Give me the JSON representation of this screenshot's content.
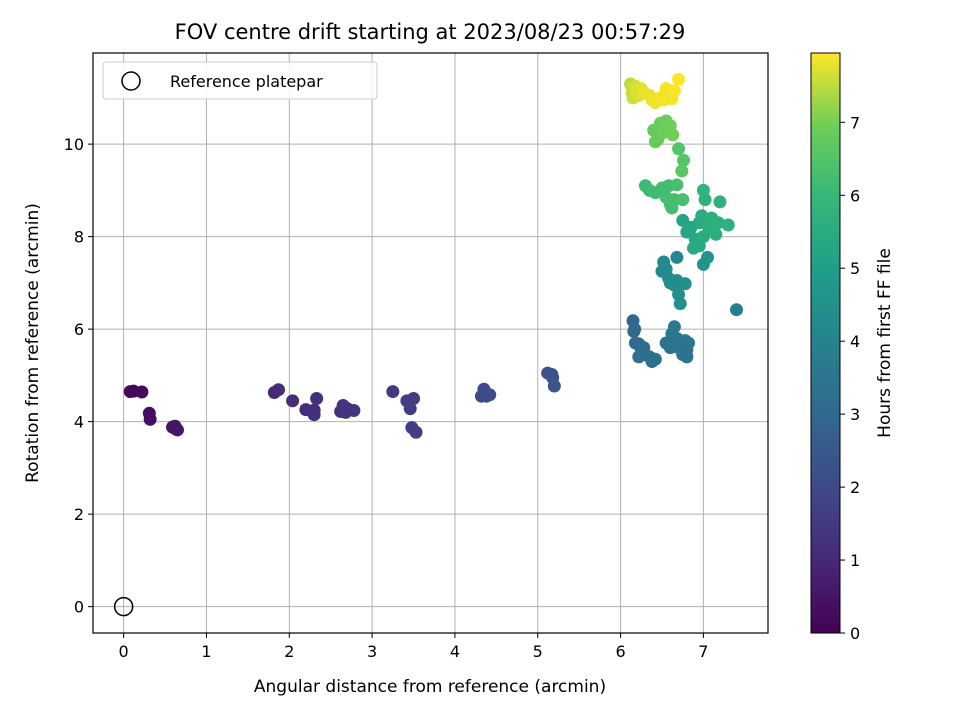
{
  "chart_data": {
    "type": "scatter",
    "title": "FOV centre drift starting at 2023/08/23 00:57:29",
    "xlabel": "Angular distance from reference (arcmin)",
    "ylabel": "Rotation from reference (arcmin)",
    "xlim": [
      -0.37,
      7.78
    ],
    "ylim": [
      -0.57,
      11.97
    ],
    "xticks": [
      0,
      1,
      2,
      3,
      4,
      5,
      6,
      7
    ],
    "yticks": [
      0,
      2,
      4,
      6,
      8,
      10
    ],
    "grid": true,
    "legend": {
      "placement": "top-left",
      "entries": [
        "Reference platepar"
      ]
    },
    "reference_point": {
      "x": 0,
      "y": 0,
      "label": "Reference platepar"
    },
    "colorbar": {
      "label": "Hours from first FF file",
      "range": [
        0,
        7.95
      ],
      "ticks": [
        0,
        1,
        2,
        3,
        4,
        5,
        6,
        7
      ],
      "colormap": "viridis"
    },
    "series": [
      {
        "points": [
          {
            "x": 0.08,
            "y": 4.65,
            "c": 0.1
          },
          {
            "x": 0.12,
            "y": 4.66,
            "c": 0.15
          },
          {
            "x": 0.22,
            "y": 4.64,
            "c": 0.2
          },
          {
            "x": 0.31,
            "y": 4.18,
            "c": 0.3
          },
          {
            "x": 0.32,
            "y": 4.05,
            "c": 0.35
          },
          {
            "x": 0.59,
            "y": 3.88,
            "c": 0.45
          },
          {
            "x": 0.63,
            "y": 3.84,
            "c": 0.5
          },
          {
            "x": 0.65,
            "y": 3.82,
            "c": 0.55
          },
          {
            "x": 0.62,
            "y": 3.9,
            "c": 0.48
          },
          {
            "x": 1.82,
            "y": 4.63,
            "c": 1.0
          },
          {
            "x": 1.87,
            "y": 4.69,
            "c": 1.05
          },
          {
            "x": 2.04,
            "y": 4.45,
            "c": 1.1
          },
          {
            "x": 2.2,
            "y": 4.26,
            "c": 1.15
          },
          {
            "x": 2.3,
            "y": 4.15,
            "c": 1.2
          },
          {
            "x": 2.33,
            "y": 4.5,
            "c": 1.2
          },
          {
            "x": 2.3,
            "y": 4.25,
            "c": 1.18
          },
          {
            "x": 2.62,
            "y": 4.22,
            "c": 1.3
          },
          {
            "x": 2.65,
            "y": 4.35,
            "c": 1.32
          },
          {
            "x": 2.7,
            "y": 4.28,
            "c": 1.35
          },
          {
            "x": 2.68,
            "y": 4.2,
            "c": 1.33
          },
          {
            "x": 2.78,
            "y": 4.24,
            "c": 1.38
          },
          {
            "x": 3.25,
            "y": 4.65,
            "c": 1.55
          },
          {
            "x": 3.42,
            "y": 4.45,
            "c": 1.6
          },
          {
            "x": 3.46,
            "y": 4.28,
            "c": 1.62
          },
          {
            "x": 3.5,
            "y": 4.5,
            "c": 1.65
          },
          {
            "x": 3.48,
            "y": 3.87,
            "c": 1.67
          },
          {
            "x": 3.53,
            "y": 3.77,
            "c": 1.7
          },
          {
            "x": 4.32,
            "y": 4.55,
            "c": 2.0
          },
          {
            "x": 4.35,
            "y": 4.7,
            "c": 2.02
          },
          {
            "x": 4.38,
            "y": 4.55,
            "c": 2.05
          },
          {
            "x": 4.42,
            "y": 4.58,
            "c": 2.07
          },
          {
            "x": 5.12,
            "y": 5.05,
            "c": 2.3
          },
          {
            "x": 5.17,
            "y": 5.02,
            "c": 2.32
          },
          {
            "x": 5.18,
            "y": 4.95,
            "c": 2.35
          },
          {
            "x": 5.2,
            "y": 4.77,
            "c": 2.37
          },
          {
            "x": 6.15,
            "y": 6.18,
            "c": 2.95
          },
          {
            "x": 6.17,
            "y": 6.0,
            "c": 3.0
          },
          {
            "x": 6.16,
            "y": 5.95,
            "c": 3.02
          },
          {
            "x": 6.18,
            "y": 5.7,
            "c": 3.05
          },
          {
            "x": 6.22,
            "y": 5.68,
            "c": 3.1
          },
          {
            "x": 6.25,
            "y": 5.55,
            "c": 3.15
          },
          {
            "x": 6.28,
            "y": 5.6,
            "c": 3.12
          },
          {
            "x": 6.3,
            "y": 5.45,
            "c": 3.2
          },
          {
            "x": 6.22,
            "y": 5.4,
            "c": 3.22
          },
          {
            "x": 6.35,
            "y": 5.4,
            "c": 3.25
          },
          {
            "x": 6.38,
            "y": 5.3,
            "c": 3.28
          },
          {
            "x": 6.42,
            "y": 5.35,
            "c": 3.3
          },
          {
            "x": 6.55,
            "y": 5.7,
            "c": 3.4
          },
          {
            "x": 6.6,
            "y": 5.6,
            "c": 3.45
          },
          {
            "x": 6.62,
            "y": 5.9,
            "c": 3.5
          },
          {
            "x": 6.65,
            "y": 6.05,
            "c": 3.55
          },
          {
            "x": 6.68,
            "y": 5.8,
            "c": 3.5
          },
          {
            "x": 6.72,
            "y": 5.65,
            "c": 3.45
          },
          {
            "x": 6.75,
            "y": 5.45,
            "c": 3.4
          },
          {
            "x": 6.78,
            "y": 5.75,
            "c": 3.48
          },
          {
            "x": 6.8,
            "y": 5.55,
            "c": 3.42
          },
          {
            "x": 6.82,
            "y": 5.7,
            "c": 3.46
          },
          {
            "x": 6.8,
            "y": 5.4,
            "c": 3.38
          },
          {
            "x": 6.7,
            "y": 5.6,
            "c": 3.52
          },
          {
            "x": 7.4,
            "y": 6.42,
            "c": 3.85
          },
          {
            "x": 6.52,
            "y": 7.45,
            "c": 4.2
          },
          {
            "x": 6.55,
            "y": 7.3,
            "c": 4.25
          },
          {
            "x": 6.5,
            "y": 7.25,
            "c": 4.22
          },
          {
            "x": 6.58,
            "y": 7.1,
            "c": 4.3
          },
          {
            "x": 6.6,
            "y": 7.0,
            "c": 4.35
          },
          {
            "x": 6.65,
            "y": 6.95,
            "c": 4.4
          },
          {
            "x": 6.68,
            "y": 7.05,
            "c": 4.38
          },
          {
            "x": 6.7,
            "y": 6.75,
            "c": 4.45
          },
          {
            "x": 6.72,
            "y": 6.55,
            "c": 4.5
          },
          {
            "x": 6.78,
            "y": 6.98,
            "c": 4.42
          },
          {
            "x": 6.68,
            "y": 7.55,
            "c": 4.15
          },
          {
            "x": 7.0,
            "y": 7.4,
            "c": 4.6
          },
          {
            "x": 7.05,
            "y": 7.55,
            "c": 4.65
          },
          {
            "x": 6.75,
            "y": 8.35,
            "c": 5.2
          },
          {
            "x": 6.8,
            "y": 8.1,
            "c": 5.25
          },
          {
            "x": 6.85,
            "y": 8.2,
            "c": 5.3
          },
          {
            "x": 6.9,
            "y": 7.95,
            "c": 5.35
          },
          {
            "x": 6.88,
            "y": 7.75,
            "c": 5.4
          },
          {
            "x": 6.95,
            "y": 8.3,
            "c": 5.45
          },
          {
            "x": 6.98,
            "y": 8.45,
            "c": 5.5
          },
          {
            "x": 7.0,
            "y": 8.0,
            "c": 5.52
          },
          {
            "x": 7.05,
            "y": 8.25,
            "c": 5.55
          },
          {
            "x": 7.1,
            "y": 8.4,
            "c": 5.6
          },
          {
            "x": 7.12,
            "y": 8.15,
            "c": 5.58
          },
          {
            "x": 7.15,
            "y": 8.05,
            "c": 5.62
          },
          {
            "x": 7.18,
            "y": 8.3,
            "c": 5.65
          },
          {
            "x": 7.2,
            "y": 8.75,
            "c": 5.7
          },
          {
            "x": 7.3,
            "y": 8.25,
            "c": 5.68
          },
          {
            "x": 7.02,
            "y": 8.8,
            "c": 5.75
          },
          {
            "x": 7.0,
            "y": 9.0,
            "c": 5.8
          },
          {
            "x": 6.95,
            "y": 7.8,
            "c": 5.42
          },
          {
            "x": 6.3,
            "y": 9.1,
            "c": 6.1
          },
          {
            "x": 6.35,
            "y": 9.0,
            "c": 6.12
          },
          {
            "x": 6.42,
            "y": 8.95,
            "c": 6.15
          },
          {
            "x": 6.5,
            "y": 9.05,
            "c": 6.2
          },
          {
            "x": 6.55,
            "y": 8.85,
            "c": 6.22
          },
          {
            "x": 6.6,
            "y": 8.7,
            "c": 6.25
          },
          {
            "x": 6.65,
            "y": 8.8,
            "c": 6.28
          },
          {
            "x": 6.58,
            "y": 9.1,
            "c": 6.18
          },
          {
            "x": 6.68,
            "y": 9.12,
            "c": 6.3
          },
          {
            "x": 6.75,
            "y": 8.8,
            "c": 6.32
          },
          {
            "x": 6.62,
            "y": 8.62,
            "c": 6.24
          },
          {
            "x": 6.7,
            "y": 9.9,
            "c": 6.5
          },
          {
            "x": 6.76,
            "y": 9.65,
            "c": 6.55
          },
          {
            "x": 6.74,
            "y": 9.42,
            "c": 6.6
          },
          {
            "x": 6.4,
            "y": 10.3,
            "c": 6.8
          },
          {
            "x": 6.45,
            "y": 10.1,
            "c": 6.82
          },
          {
            "x": 6.48,
            "y": 10.45,
            "c": 6.85
          },
          {
            "x": 6.52,
            "y": 10.25,
            "c": 6.88
          },
          {
            "x": 6.55,
            "y": 10.5,
            "c": 6.9
          },
          {
            "x": 6.6,
            "y": 10.4,
            "c": 6.92
          },
          {
            "x": 6.63,
            "y": 10.2,
            "c": 6.95
          },
          {
            "x": 6.42,
            "y": 10.05,
            "c": 6.84
          },
          {
            "x": 6.12,
            "y": 11.3,
            "c": 7.5
          },
          {
            "x": 6.14,
            "y": 11.1,
            "c": 7.55
          },
          {
            "x": 6.15,
            "y": 11.0,
            "c": 7.6
          },
          {
            "x": 6.18,
            "y": 11.25,
            "c": 7.65
          },
          {
            "x": 6.2,
            "y": 11.15,
            "c": 7.7
          },
          {
            "x": 6.22,
            "y": 11.05,
            "c": 7.72
          },
          {
            "x": 6.25,
            "y": 11.2,
            "c": 7.75
          },
          {
            "x": 6.28,
            "y": 11.12,
            "c": 7.78
          },
          {
            "x": 6.35,
            "y": 11.05,
            "c": 7.8
          },
          {
            "x": 6.38,
            "y": 10.95,
            "c": 7.82
          },
          {
            "x": 6.42,
            "y": 10.9,
            "c": 7.85
          },
          {
            "x": 6.48,
            "y": 11.0,
            "c": 7.86
          },
          {
            "x": 6.55,
            "y": 11.2,
            "c": 7.88
          },
          {
            "x": 6.58,
            "y": 11.05,
            "c": 7.9
          },
          {
            "x": 6.62,
            "y": 10.98,
            "c": 7.9
          },
          {
            "x": 6.65,
            "y": 11.15,
            "c": 7.92
          },
          {
            "x": 6.7,
            "y": 11.4,
            "c": 7.94
          },
          {
            "x": 6.52,
            "y": 10.95,
            "c": 7.87
          }
        ]
      }
    ]
  }
}
